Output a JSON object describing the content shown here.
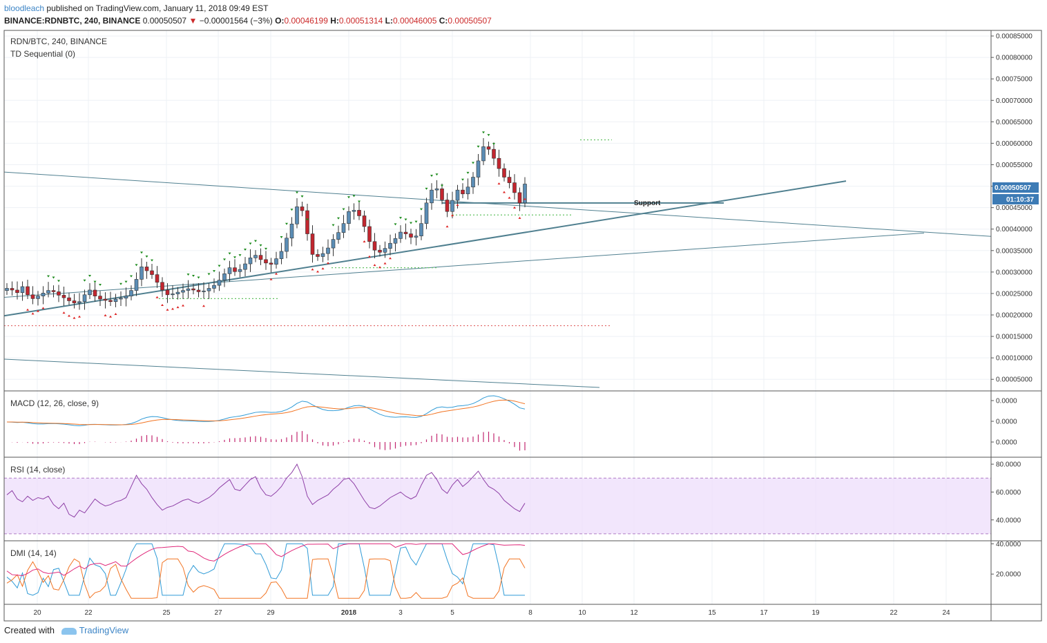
{
  "header": {
    "author": "bloodleach",
    "published": "published on TradingView.com, January 11, 2018 09:49 EST"
  },
  "quote": {
    "symbol": "BINANCE:RDNBTC, 240, BINANCE",
    "last": "0.00050507",
    "change": "−0.00001564 (−3%)",
    "open_label": "O:",
    "open": "0.00046199",
    "high_label": "H:",
    "high": "0.00051314",
    "low_label": "L:",
    "low": "0.00046005",
    "close_label": "C:",
    "close": "0.00050507"
  },
  "footer": {
    "created_with": "Created with",
    "brand": "TradingView"
  },
  "chart_data": [
    {
      "type": "candlestick",
      "title": "RDN/BTC, 240, BINANCE",
      "indicator": "TD Sequential (0)",
      "x_ticks": [
        "20",
        "22",
        "25",
        "27",
        "29",
        "2018",
        "3",
        "5",
        "8",
        "10",
        "12",
        "15",
        "17",
        "19",
        "22",
        "24"
      ],
      "y_ticks": [
        "0.00085000",
        "0.00080000",
        "0.00075000",
        "0.00070000",
        "0.00065000",
        "0.00060000",
        "0.00055000",
        "0.00050000",
        "0.00045000",
        "0.00040000",
        "0.00035000",
        "0.00030000",
        "0.00025000",
        "0.00020000",
        "0.00015000",
        "0.00010000",
        "0.00005000"
      ],
      "ylim": [
        2.3e-05,
        0.000863
      ],
      "last_price_label": "0.00050507",
      "countdown_label": "01:10:37",
      "annotation": "Support",
      "close_series": [
        0.000262,
        0.000258,
        0.000252,
        0.000266,
        0.000247,
        0.000238,
        0.000244,
        0.000251,
        0.000257,
        0.000254,
        0.000246,
        0.00024,
        0.000233,
        0.000228,
        0.000231,
        0.000247,
        0.000258,
        0.000244,
        0.000237,
        0.000234,
        0.000231,
        0.000237,
        0.000239,
        0.000244,
        0.000257,
        0.000283,
        0.000312,
        0.000303,
        0.000294,
        0.000276,
        0.000258,
        0.000247,
        0.000249,
        0.000253,
        0.000257,
        0.000261,
        0.000258,
        0.000254,
        0.000256,
        0.000262,
        0.000269,
        0.000281,
        0.000296,
        0.00031,
        0.000301,
        0.000306,
        0.000319,
        0.000333,
        0.000339,
        0.000329,
        0.000321,
        0.000318,
        0.000331,
        0.000348,
        0.000379,
        0.000412,
        0.000452,
        0.000443,
        0.000389,
        0.000341,
        0.000336,
        0.000343,
        0.000356,
        0.000376,
        0.000392,
        0.000413,
        0.000441,
        0.000444,
        0.000431,
        0.000406,
        0.000371,
        0.000351,
        0.000346,
        0.000355,
        0.000367,
        0.000378,
        0.000393,
        0.000389,
        0.000381,
        0.000384,
        0.000413,
        0.000461,
        0.000491,
        0.000494,
        0.000468,
        0.000441,
        0.000467,
        0.000491,
        0.000482,
        0.000498,
        0.000521,
        0.000559,
        0.000592,
        0.000586,
        0.000565,
        0.000541,
        0.000521,
        0.000508,
        0.000485,
        0.000461,
        0.000505
      ]
    },
    {
      "type": "line",
      "title": "MACD (12, 26, close, 9)",
      "y_ticks": [
        "0.0000",
        "0.0000",
        "0.0000"
      ]
    },
    {
      "type": "line",
      "title": "RSI (14, close)",
      "y_ticks": [
        "80.0000",
        "60.0000",
        "40.0000"
      ],
      "ylim": [
        25,
        85
      ],
      "bands": [
        30,
        70
      ],
      "values": [
        58,
        61,
        55,
        53,
        57,
        54,
        56,
        55,
        57,
        51,
        48,
        52,
        44,
        42,
        47,
        45,
        50,
        55,
        52,
        50,
        51,
        53,
        54,
        56,
        64,
        72,
        66,
        62,
        56,
        51,
        47,
        49,
        50,
        52,
        54,
        55,
        53,
        52,
        54,
        56,
        59,
        63,
        66,
        69,
        62,
        61,
        65,
        69,
        71,
        63,
        58,
        57,
        60,
        64,
        70,
        74,
        80,
        71,
        57,
        51,
        54,
        56,
        58,
        62,
        65,
        69,
        70,
        66,
        60,
        54,
        49,
        48,
        50,
        53,
        56,
        58,
        60,
        57,
        55,
        57,
        65,
        72,
        74,
        69,
        62,
        59,
        65,
        69,
        64,
        67,
        71,
        75,
        69,
        64,
        62,
        59,
        54,
        51,
        48,
        46,
        52
      ]
    },
    {
      "type": "line",
      "title": "DMI (14, 14)",
      "y_ticks": [
        "40.0000",
        "20.0000"
      ],
      "ylim": [
        0,
        42
      ]
    }
  ]
}
